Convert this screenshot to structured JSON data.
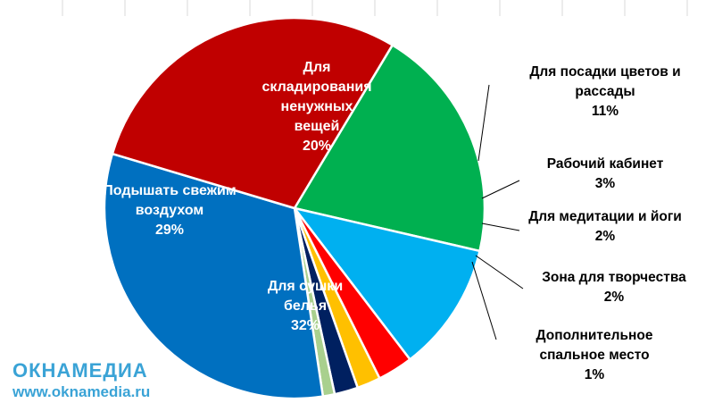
{
  "chart_data": {
    "type": "pie",
    "slices": [
      {
        "label": "Для складирования ненужных вещей",
        "lines": [
          "Для",
          "складирования",
          "ненужных",
          "вещей"
        ],
        "value": 20,
        "value_label": "20%",
        "color": "#00b050",
        "label_side": "inside"
      },
      {
        "label": "Для посадки цветов и рассады",
        "lines": [
          "Для посадки цветов и",
          "рассады"
        ],
        "value": 11,
        "value_label": "11%",
        "color": "#00b0f0",
        "label_side": "outside"
      },
      {
        "label": "Рабочий кабинет",
        "lines": [
          "Рабочий кабинет"
        ],
        "value": 3,
        "value_label": "3%",
        "color": "#ff0000",
        "label_side": "outside"
      },
      {
        "label": "Для медитации и йоги",
        "lines": [
          "Для медитации и йоги"
        ],
        "value": 2,
        "value_label": "2%",
        "color": "#ffc000",
        "label_side": "outside"
      },
      {
        "label": "Зона для творчества",
        "lines": [
          "Зона для творчества"
        ],
        "value": 2,
        "value_label": "2%",
        "color": "#002060",
        "label_side": "outside"
      },
      {
        "label": "Дополнительное спальное место",
        "lines": [
          "Дополнительное",
          "спальное место"
        ],
        "value": 1,
        "value_label": "1%",
        "color": "#a9d08e",
        "label_side": "outside"
      },
      {
        "label": "Для сушки белья",
        "lines": [
          "Для сушки",
          "белья"
        ],
        "value": 32,
        "value_label": "32%",
        "color": "#0070c0",
        "label_side": "inside"
      },
      {
        "label": "Подышать свежим воздухом",
        "lines": [
          "Подышать свежим",
          "воздухом"
        ],
        "value": 29,
        "value_label": "29%",
        "color": "#c00000",
        "label_side": "inside"
      }
    ]
  },
  "watermark": {
    "logo": "ОКНАМЕДИА",
    "url": "www.oknamedia.ru"
  }
}
